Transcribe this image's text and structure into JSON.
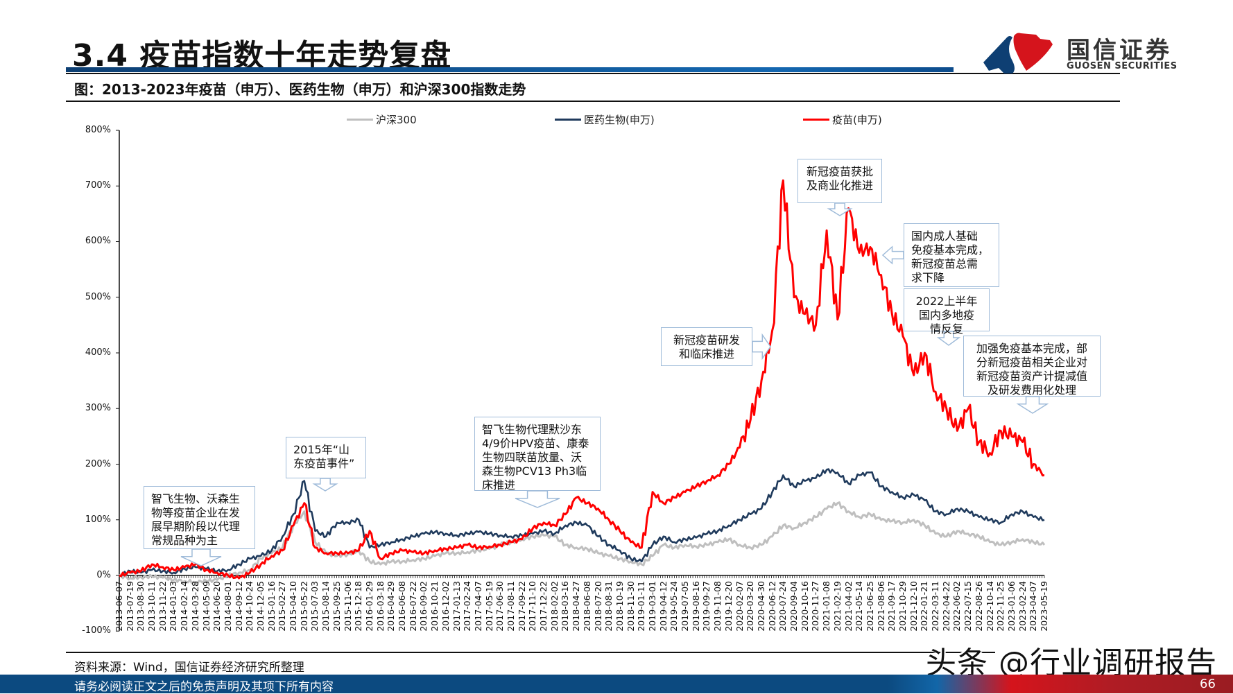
{
  "header": {
    "title": "3.4 疫苗指数十年走势复盘",
    "logo_cn": "国信证券",
    "logo_en": "GUOSEN SECURITIES",
    "subtitle": "图：2013-2023年疫苗（申万）、医药生物（申万）和沪深300指数走势"
  },
  "colors": {
    "hs300": "#bfbfbf",
    "pharma": "#1f3a5c",
    "vaccine": "#ff0000",
    "annotation_border": "#9fbbd9",
    "brand_blue": "#0c4a80",
    "brand_red": "#d5141c"
  },
  "legend": [
    {
      "label": "沪深300",
      "color": "#bfbfbf"
    },
    {
      "label": "医药生物(申万)",
      "color": "#1f3a5c"
    },
    {
      "label": "疫苗(申万)",
      "color": "#ff0000"
    }
  ],
  "chart_data": {
    "type": "line",
    "title": "2013-2023年疫苗（申万）、医药生物（申万）和沪深300指数走势",
    "xlabel": "",
    "ylabel": "",
    "ylim": [
      -100,
      800
    ],
    "yticks": [
      "800%",
      "700%",
      "600%",
      "500%",
      "400%",
      "300%",
      "200%",
      "100%",
      "0%",
      "-100%"
    ],
    "grid": false,
    "legend_position": "top",
    "x": [
      "2013-06-07",
      "2013-07-19",
      "2013-08-30",
      "2013-10-11",
      "2013-11-22",
      "2014-01-03",
      "2014-02-14",
      "2014-03-28",
      "2014-05-09",
      "2014-06-20",
      "2014-08-01",
      "2014-09-12",
      "2014-10-24",
      "2014-12-05",
      "2015-01-16",
      "2015-02-27",
      "2015-04-10",
      "2015-05-22",
      "2015-07-03",
      "2015-08-14",
      "2015-09-25",
      "2015-11-06",
      "2015-12-18",
      "2016-01-29",
      "2016-03-18",
      "2016-04-29",
      "2016-06-08",
      "2016-07-22",
      "2016-09-02",
      "2016-10-21",
      "2016-12-02",
      "2017-01-13",
      "2017-02-24",
      "2017-04-07",
      "2017-05-19",
      "2017-06-30",
      "2017-08-11",
      "2017-09-22",
      "2017-11-10",
      "2017-12-22",
      "2018-02-02",
      "2018-03-16",
      "2018-04-27",
      "2018-06-08",
      "2018-07-20",
      "2018-08-31",
      "2018-10-19",
      "2018-11-30",
      "2019-01-11",
      "2019-03-01",
      "2019-04-12",
      "2019-05-24",
      "2019-07-05",
      "2019-08-16",
      "2019-09-27",
      "2019-11-08",
      "2019-12-20",
      "2020-02-07",
      "2020-03-20",
      "2020-04-30",
      "2020-06-12",
      "2020-07-24",
      "2020-09-04",
      "2020-10-16",
      "2020-11-27",
      "2021-01-08",
      "2021-02-19",
      "2021-04-02",
      "2021-05-14",
      "2021-06-25",
      "2021-08-06",
      "2021-09-17",
      "2021-10-29",
      "2021-12-10",
      "2022-01-21",
      "2022-03-11",
      "2022-04-22",
      "2022-06-02",
      "2022-07-15",
      "2022-08-26",
      "2022-10-14",
      "2022-11-25",
      "2023-01-06",
      "2023-02-24",
      "2023-04-07",
      "2023-05-19"
    ],
    "series": [
      {
        "name": "沪深300",
        "values": [
          0,
          -5,
          -3,
          -2,
          -4,
          -8,
          -10,
          -12,
          -10,
          -8,
          0,
          5,
          10,
          30,
          40,
          50,
          90,
          115,
          60,
          40,
          35,
          38,
          45,
          25,
          20,
          25,
          25,
          28,
          30,
          35,
          40,
          40,
          42,
          45,
          48,
          55,
          60,
          65,
          70,
          72,
          70,
          55,
          50,
          48,
          40,
          35,
          30,
          25,
          20,
          35,
          55,
          50,
          55,
          52,
          55,
          60,
          65,
          55,
          50,
          55,
          70,
          90,
          85,
          95,
          105,
          120,
          130,
          115,
          105,
          110,
          100,
          98,
          95,
          100,
          90,
          75,
          70,
          80,
          75,
          70,
          60,
          55,
          60,
          65,
          60,
          55
        ]
      },
      {
        "name": "医药生物(申万)",
        "values": [
          0,
          8,
          5,
          10,
          8,
          5,
          12,
          15,
          12,
          8,
          10,
          20,
          30,
          35,
          45,
          70,
          110,
          170,
          80,
          70,
          95,
          95,
          100,
          50,
          55,
          60,
          65,
          70,
          75,
          78,
          75,
          72,
          75,
          78,
          75,
          72,
          70,
          72,
          75,
          80,
          75,
          90,
          95,
          90,
          70,
          55,
          45,
          30,
          25,
          55,
          70,
          60,
          65,
          68,
          75,
          80,
          90,
          100,
          110,
          120,
          150,
          180,
          160,
          170,
          175,
          190,
          185,
          165,
          180,
          185,
          160,
          150,
          140,
          145,
          135,
          115,
          110,
          120,
          115,
          105,
          100,
          95,
          110,
          115,
          105,
          100
        ]
      },
      {
        "name": "疫苗(申万)",
        "values": [
          0,
          5,
          8,
          20,
          15,
          10,
          15,
          20,
          10,
          5,
          0,
          -5,
          5,
          20,
          35,
          45,
          90,
          130,
          50,
          40,
          40,
          40,
          45,
          80,
          30,
          40,
          45,
          42,
          40,
          45,
          48,
          50,
          55,
          50,
          52,
          55,
          60,
          65,
          85,
          95,
          90,
          110,
          140,
          130,
          120,
          100,
          80,
          60,
          50,
          150,
          130,
          140,
          150,
          160,
          170,
          180,
          200,
          230,
          280,
          350,
          440,
          710,
          500,
          470,
          450,
          620,
          460,
          660,
          580,
          590,
          540,
          470,
          430,
          360,
          400,
          330,
          300,
          260,
          300,
          240,
          220,
          260,
          250,
          240,
          200,
          180
        ]
      }
    ],
    "annotations": [
      {
        "text": "智飞生物、沃森生物等疫苗企业在发展早期阶段以代理常规品种为主",
        "near": "2014-05"
      },
      {
        "text": "2015年“山东疫苗事件”",
        "near": "2015-06"
      },
      {
        "text": "智飞生物代理默沙东4/9价HPV疫苗、康泰生物四联苗放量、沃森生物PCV13 Ph3临床推进",
        "near": "2018-01"
      },
      {
        "text": "新冠疫苗研发和临床推进",
        "near": "2020-04"
      },
      {
        "text": "新冠疫苗获批及商业化推进",
        "near": "2021-02"
      },
      {
        "text": "国内成人基础免疫基本完成，新冠疫苗总需求下降",
        "near": "2021-07"
      },
      {
        "text": "2022上半年国内多地疫情反复",
        "near": "2022-03"
      },
      {
        "text": "加强免疫基本完成，部分新冠疫苗相关企业对新冠疫苗资产计提减值及研发费用化处理",
        "near": "2023-03"
      }
    ]
  },
  "annotations_display": [
    {
      "lines": [
        "智飞生物、沃森生",
        "物等疫苗企业在发",
        "展早期阶段以代理",
        "常规品种为主"
      ]
    },
    {
      "lines": [
        "2015年“山",
        "东疫苗事件”"
      ]
    },
    {
      "lines": [
        "智飞生物代理默沙东",
        "4/9价HPV疫苗、康泰",
        "生物四联苗放量、沃",
        "森生物PCV13 Ph3临",
        "床推进"
      ]
    },
    {
      "lines": [
        "新冠疫苗研发",
        "和临床推进"
      ]
    },
    {
      "lines": [
        "新冠疫苗获批",
        "及商业化推进"
      ]
    },
    {
      "lines": [
        "国内成人基础",
        "免疫基本完成，",
        "新冠疫苗总需",
        "求下降"
      ]
    },
    {
      "lines": [
        "2022上半年",
        "国内多地疫",
        "情反复"
      ]
    },
    {
      "lines": [
        "加强免疫基本完成，部",
        "分新冠疫苗相关企业对",
        "新冠疫苗资产计提减值",
        "及研发费用化处理"
      ]
    }
  ],
  "footer": {
    "source": "资料来源：Wind，国信证券经济研究所整理",
    "disclaimer": "请务必阅读正文之后的免责声明及其项下所有内容",
    "page": "66",
    "watermark": "头条 @行业调研报告"
  }
}
